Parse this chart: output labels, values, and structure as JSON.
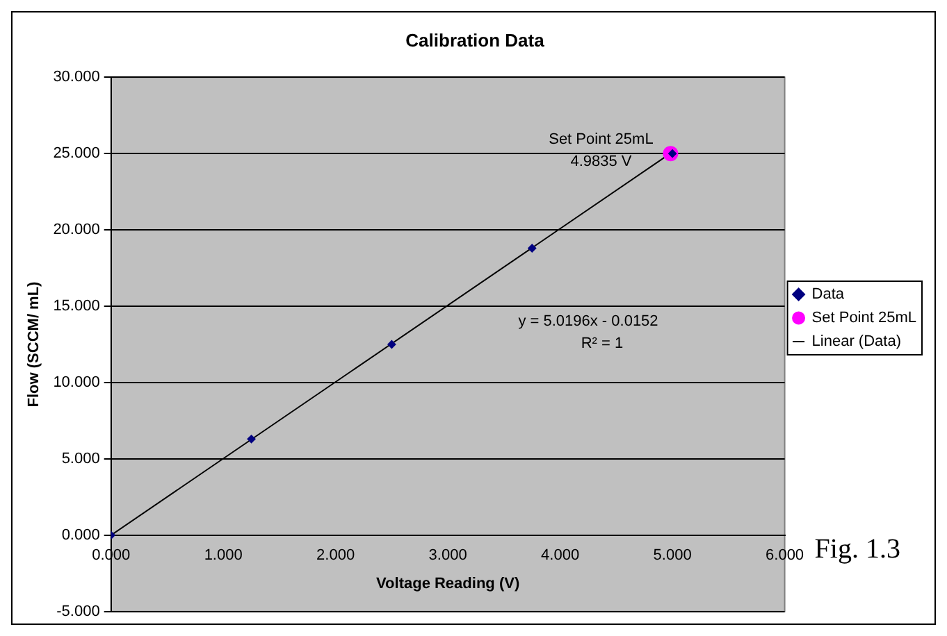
{
  "chart_data": {
    "type": "scatter",
    "title": "Calibration Data",
    "xlabel": "Voltage Reading (V)",
    "ylabel": "Flow (SCCM/ mL)",
    "series": [
      {
        "name": "Data",
        "type": "scatter",
        "marker": "diamond",
        "color": "#000080",
        "x": [
          0,
          1.25,
          2.5,
          3.75,
          5.0
        ],
        "values": [
          0,
          6.3,
          12.5,
          18.8,
          25.0
        ]
      },
      {
        "name": "Set Point 25mL",
        "type": "scatter",
        "marker": "circle",
        "color": "#ff00ff",
        "x": [
          4.9835
        ],
        "values": [
          25
        ]
      },
      {
        "name": "Linear (Data)",
        "type": "line",
        "marker": "none",
        "color": "#000000",
        "x": [
          0,
          4.98
        ],
        "values": [
          0,
          25
        ]
      }
    ],
    "xlim": [
      0,
      6
    ],
    "xticks": [
      {
        "value": 0,
        "label": "0.000"
      },
      {
        "value": 1,
        "label": "1.000"
      },
      {
        "value": 2,
        "label": "2.000"
      },
      {
        "value": 3,
        "label": "3.000"
      },
      {
        "value": 4,
        "label": "4.000"
      },
      {
        "value": 5,
        "label": "5.000"
      },
      {
        "value": 6,
        "label": "6.000"
      }
    ],
    "ylim": [
      -5,
      30
    ],
    "yticks": [
      {
        "value": -5,
        "label": "-5.000"
      },
      {
        "value": 0,
        "label": "0.000"
      },
      {
        "value": 5,
        "label": "5.000"
      },
      {
        "value": 10,
        "label": "10.000"
      },
      {
        "value": 15,
        "label": "15.000"
      },
      {
        "value": 20,
        "label": "20.000"
      },
      {
        "value": 25,
        "label": "25.000"
      },
      {
        "value": 30,
        "label": "30.000"
      }
    ],
    "grid": "y",
    "legend": "right",
    "annotations": [
      {
        "text": "Set Point 25mL\n4.9835 V",
        "x": 4.9835,
        "y": 25
      },
      "y = 5.0196x - 0.0152\nR² = 1",
      "Fig. 1.3"
    ]
  }
}
